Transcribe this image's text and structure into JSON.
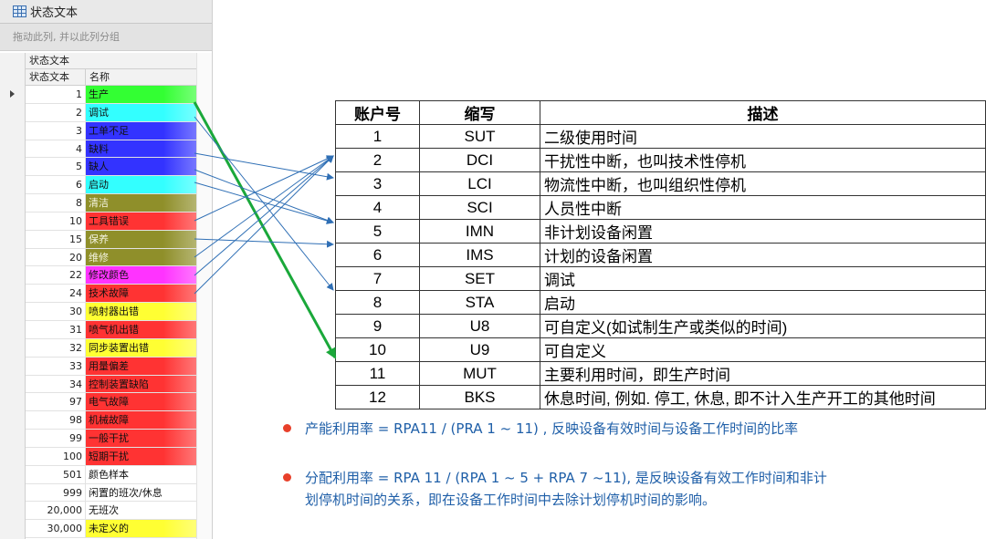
{
  "grid": {
    "title": "状态文本",
    "group_hint": "拖动此列, 并以此列分组",
    "band_header": "状态文本",
    "columns": [
      "状态文本",
      "名称"
    ],
    "rows": [
      {
        "code": "1",
        "name": "生产",
        "color": "#33ff33",
        "light": false
      },
      {
        "code": "2",
        "name": "调试",
        "color": "#33ffff",
        "light": false
      },
      {
        "code": "3",
        "name": "工单不足",
        "color": "#3333ff",
        "light": false
      },
      {
        "code": "4",
        "name": "缺料",
        "color": "#3333ff",
        "light": false
      },
      {
        "code": "5",
        "name": "缺人",
        "color": "#3333ff",
        "light": false
      },
      {
        "code": "6",
        "name": "启动",
        "color": "#33ffff",
        "light": false
      },
      {
        "code": "8",
        "name": "清洁",
        "color": "#8f8f2a",
        "light": true
      },
      {
        "code": "10",
        "name": "工具错误",
        "color": "#ff3333",
        "light": false
      },
      {
        "code": "15",
        "name": "保养",
        "color": "#8f8f2a",
        "light": true
      },
      {
        "code": "20",
        "name": "维修",
        "color": "#8f8f2a",
        "light": true
      },
      {
        "code": "22",
        "name": "修改颜色",
        "color": "#ff33ff",
        "light": false
      },
      {
        "code": "24",
        "name": "技术故障",
        "color": "#ff3333",
        "light": false
      },
      {
        "code": "30",
        "name": "喷射器出错",
        "color": "#ffff33",
        "light": false
      },
      {
        "code": "31",
        "name": "喷气机出错",
        "color": "#ff3333",
        "light": false
      },
      {
        "code": "32",
        "name": "同步装置出错",
        "color": "#ffff33",
        "light": false
      },
      {
        "code": "33",
        "name": "用量偏差",
        "color": "#ff3333",
        "light": false
      },
      {
        "code": "34",
        "name": "控制装置缺陷",
        "color": "#ff3333",
        "light": false
      },
      {
        "code": "97",
        "name": "电气故障",
        "color": "#ff3333",
        "light": false
      },
      {
        "code": "98",
        "name": "机械故障",
        "color": "#ff3333",
        "light": false
      },
      {
        "code": "99",
        "name": "一般干扰",
        "color": "#ff3333",
        "light": false
      },
      {
        "code": "100",
        "name": "短期干扰",
        "color": "#ff3333",
        "light": false
      },
      {
        "code": "501",
        "name": "颜色样本",
        "color": "#ffffff",
        "light": false
      },
      {
        "code": "999",
        "name": "闲置的班次/休息",
        "color": "#ffffff",
        "light": false
      },
      {
        "code": "20,000",
        "name": "无班次",
        "color": "#ffffff",
        "light": false
      },
      {
        "code": "30,000",
        "name": "未定义的",
        "color": "#ffff33",
        "light": false
      }
    ]
  },
  "table": {
    "headers": [
      "账户号",
      "缩写",
      "描述"
    ],
    "rows": [
      [
        "1",
        "SUT",
        "二级使用时间"
      ],
      [
        "2",
        "DCI",
        "干扰性中断，也叫技术性停机"
      ],
      [
        "3",
        "LCI",
        "物流性中断，也叫组织性停机"
      ],
      [
        "4",
        "SCI",
        "人员性中断"
      ],
      [
        "5",
        "IMN",
        "非计划设备闲置"
      ],
      [
        "6",
        "IMS",
        "计划的设备闲置"
      ],
      [
        "7",
        "SET",
        "调试"
      ],
      [
        "8",
        "STA",
        "启动"
      ],
      [
        "9",
        "U8",
        "可自定义(如试制生产或类似的时间)"
      ],
      [
        "10",
        "U9",
        "可自定义"
      ],
      [
        "11",
        "MUT",
        "主要利用时间，即生产时间"
      ],
      [
        "12",
        "BKS",
        "休息时间, 例如. 停工, 休息, 即不计入生产开工的其他时间"
      ]
    ]
  },
  "notes": [
    "产能利用率 = RPA11 / (PRA 1 ~ 11) , 反映设备有效时间与设备工作时间的比率",
    "分配利用率 = RPA 11 / (RPA 1 ~ 5 + RPA 7 ~11), 是反映设备有效工作时间和非计",
    "划停机时间的关系，即在设备工作时间中去除计划停机时间的影响。"
  ],
  "colors": {
    "note_text": "#1f5fa8",
    "bullet": "#e8402a",
    "arrow_green": "#1aa83a",
    "arrow_blue": "#2f6fb5"
  }
}
